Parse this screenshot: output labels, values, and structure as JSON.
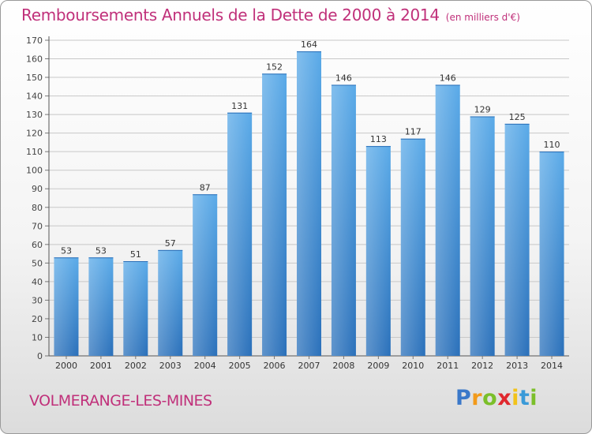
{
  "title": "Remboursements Annuels de la Dette de 2000 à 2014",
  "subtitle": "(en milliers d'€)",
  "city": "VOLMERANGE-LES-MINES",
  "brand": {
    "p": "P",
    "r": "r",
    "o": "o",
    "x": "x",
    "i1": "i",
    "t": "t",
    "i2": "i"
  },
  "colors": {
    "bar": "#4f9fe0",
    "bar_dark": "#2a6fb8",
    "title": "#c0307a",
    "grid": "#c8c8c8"
  },
  "chart_data": {
    "type": "bar",
    "title": "Remboursements Annuels de la Dette de 2000 à 2014",
    "xlabel": "",
    "ylabel": "",
    "categories": [
      "2000",
      "2001",
      "2002",
      "2003",
      "2004",
      "2005",
      "2006",
      "2007",
      "2008",
      "2009",
      "2010",
      "2011",
      "2012",
      "2013",
      "2014"
    ],
    "values": [
      53,
      53,
      51,
      57,
      87,
      131,
      152,
      164,
      146,
      113,
      117,
      146,
      129,
      125,
      110
    ],
    "ylim": [
      0,
      170
    ],
    "yticks": [
      0,
      10,
      20,
      30,
      40,
      50,
      60,
      70,
      80,
      90,
      100,
      110,
      120,
      130,
      140,
      150,
      160,
      170
    ],
    "grid": true,
    "legend": "none"
  }
}
